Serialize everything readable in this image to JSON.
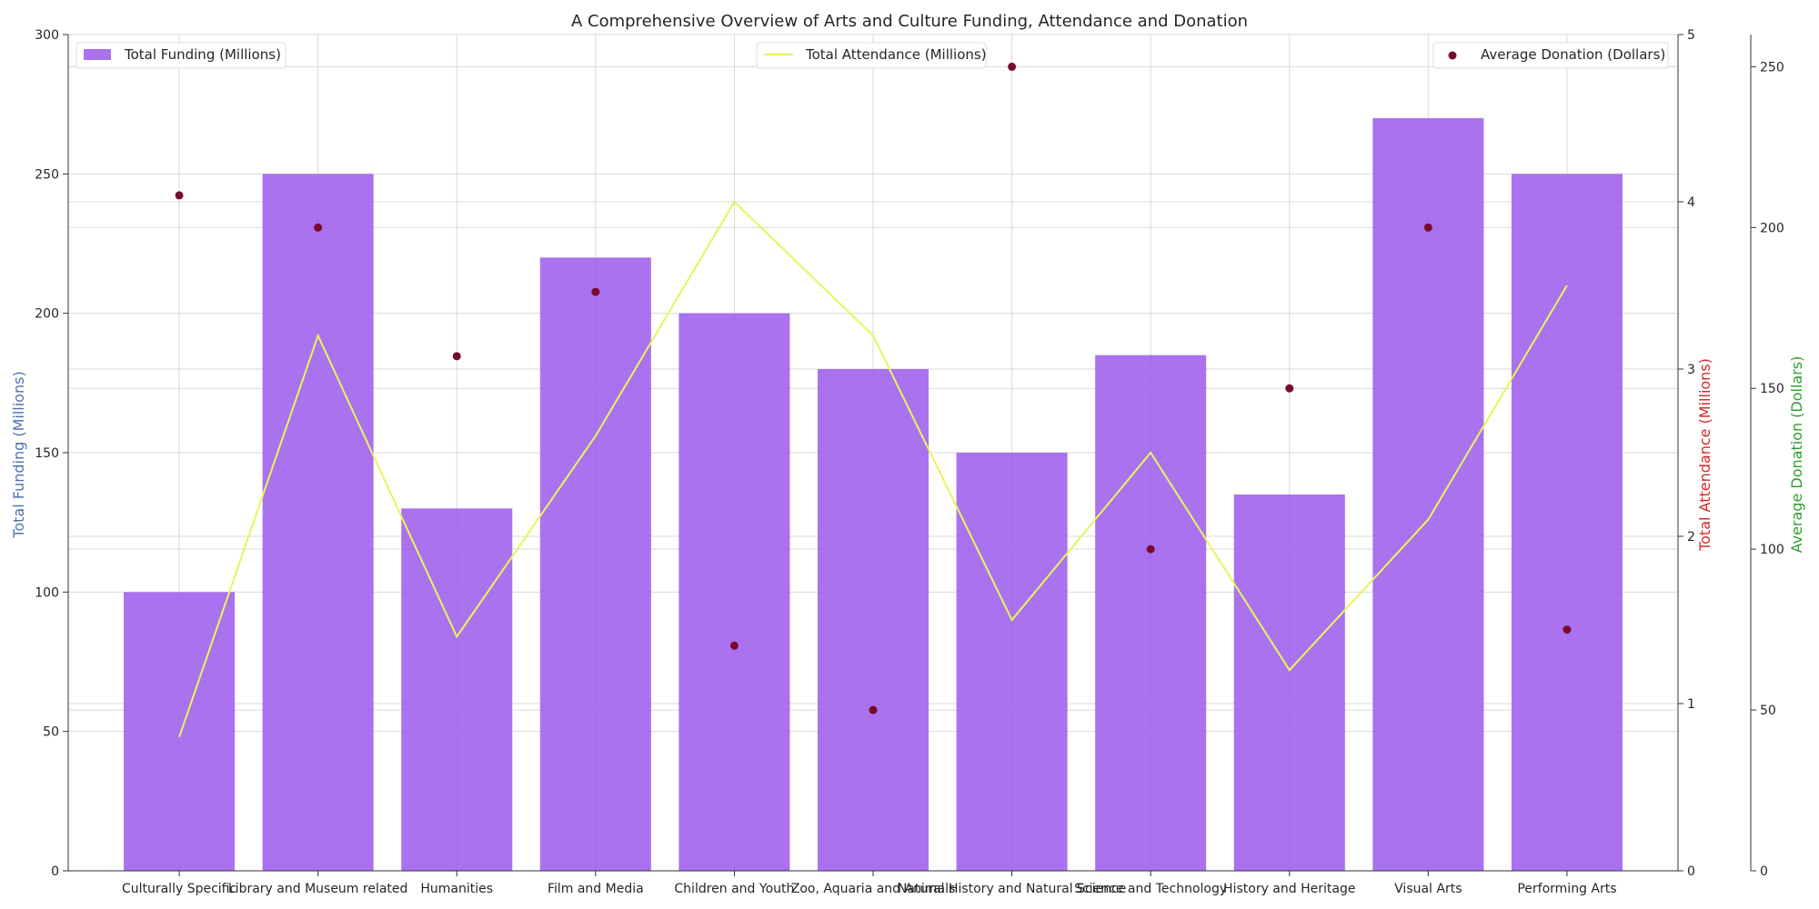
{
  "chart_data": {
    "type": "bar",
    "title": "A Comprehensive Overview of Arts and Culture Funding, Attendance and Donation",
    "xlabel": "",
    "categories": [
      "Culturally Specific",
      "Library and Museum related",
      "Humanities",
      "Film and Media",
      "Children and Youth",
      "Zoo, Aquaria and Animals",
      "Natural History and Natural Science",
      "Science and Technology",
      "History and Heritage",
      "Visual Arts",
      "Performing Arts"
    ],
    "series": [
      {
        "name": "Total Funding (Millions)",
        "type": "bar",
        "axis": "left",
        "color": "#9b59ec",
        "values": [
          100,
          250,
          130,
          220,
          200,
          180,
          150,
          185,
          135,
          270,
          250
        ]
      },
      {
        "name": "Total Attendance (Millions)",
        "type": "line",
        "axis": "right",
        "color": "#e8f55a",
        "values": [
          0.8,
          3.2,
          1.4,
          2.6,
          4.0,
          3.2,
          1.5,
          2.5,
          1.2,
          2.1,
          3.5
        ]
      },
      {
        "name": "Average Donation (Dollars)",
        "type": "scatter",
        "axis": "right2",
        "color": "#7a0a2a",
        "values": [
          210,
          200,
          160,
          180,
          70,
          50,
          250,
          100,
          150,
          200,
          75
        ]
      }
    ],
    "axes": {
      "left": {
        "label": "Total Funding (Millions)",
        "color": "#4c72b0",
        "ylim": [
          0,
          300
        ],
        "ticks": [
          0,
          50,
          100,
          150,
          200,
          250,
          300
        ]
      },
      "right": {
        "label": "Total Attendance (Millions)",
        "color": "#d62728",
        "ylim": [
          0,
          5
        ],
        "ticks": [
          0,
          1,
          2,
          3,
          4,
          5
        ]
      },
      "right2": {
        "label": "Average Donation (Dollars)",
        "color": "#2ca02c",
        "ylim": [
          0,
          260
        ],
        "ticks": [
          0,
          50,
          100,
          150,
          200,
          250
        ]
      }
    },
    "grid": true,
    "legend_placement": [
      "top-left",
      "top-center",
      "top-right"
    ]
  }
}
